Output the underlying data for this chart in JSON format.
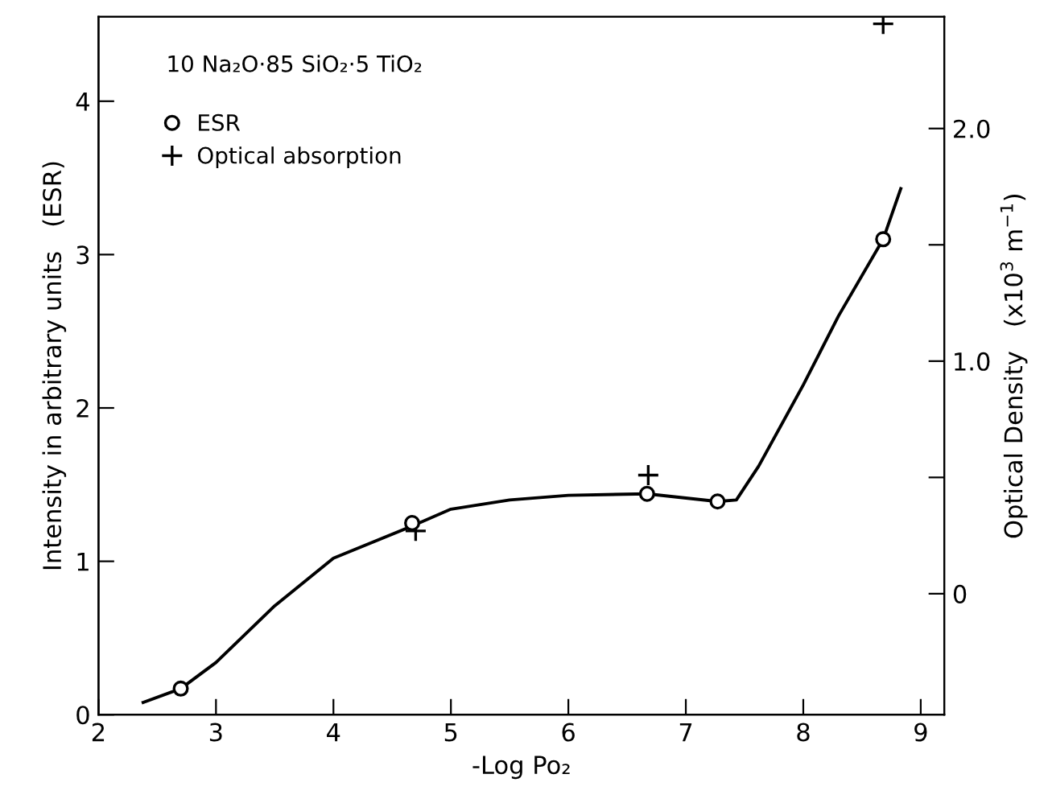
{
  "chart_data": {
    "type": "scatter",
    "xlabel": "-Log Po₂",
    "ylabel": "Intensity in arbitrary units   (ESR)",
    "y2label": "Optical Density   (x10$^{3}$ m$^{−1}$)",
    "annotations": [
      "10 Na₂O·85 SiO₂·5 TiO₂"
    ],
    "series": [
      {
        "name": "ESR",
        "marker": "circle",
        "color": "#000000",
        "x": [
          2.7,
          4.67,
          6.67,
          7.27,
          8.68
        ],
        "values": [
          0.17,
          1.25,
          1.44,
          1.39,
          3.1
        ]
      },
      {
        "name": "Optical absorption",
        "marker": "cross",
        "axis": "y2",
        "color": "#000000",
        "x": [
          4.7,
          6.68,
          8.68
        ],
        "values": [
          0.27,
          0.51,
          2.45
        ]
      },
      {
        "type": "line",
        "line_style": "solid",
        "color": "#000000",
        "x": [
          2.38,
          2.7,
          3.0,
          3.5,
          4.0,
          4.67,
          5.0,
          5.5,
          6.0,
          6.67,
          7.27,
          7.43,
          7.62,
          8.0,
          8.3,
          8.68,
          8.83
        ],
        "values": [
          0.08,
          0.17,
          0.34,
          0.71,
          1.02,
          1.23,
          1.34,
          1.4,
          1.43,
          1.44,
          1.39,
          1.4,
          1.62,
          2.15,
          2.6,
          3.1,
          3.43
        ]
      }
    ],
    "xlim": [
      2,
      9.2
    ],
    "xticks": [
      2,
      3,
      4,
      5,
      6,
      7,
      8,
      9
    ],
    "ylim": [
      0,
      4.55
    ],
    "yticks": [
      0,
      1,
      2,
      3,
      4
    ],
    "y2lim": [
      -0.52,
      2.48
    ],
    "y2ticks": [
      0,
      {
        "value": 0.5,
        "label": null
      },
      {
        "value": 1.0,
        "label": "1.0"
      },
      {
        "value": 1.5,
        "label": null
      },
      {
        "value": 2.0,
        "label": "2.0"
      }
    ],
    "grid": false,
    "legend": "top left"
  }
}
